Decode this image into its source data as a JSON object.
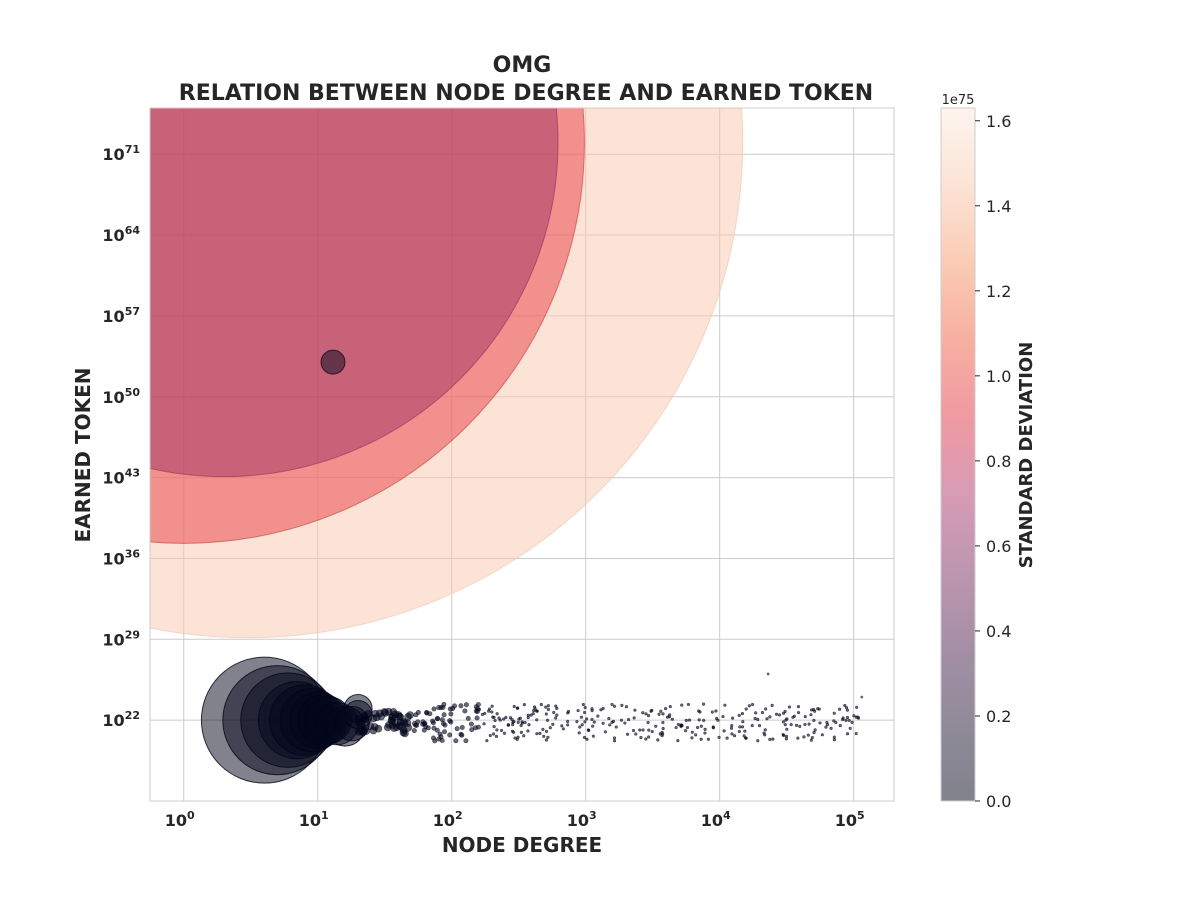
{
  "chart_data": {
    "type": "scatter",
    "title_lines": [
      "OMG",
      "RELATION BETWEEN NODE DEGREE AND EARNED TOKEN"
    ],
    "xlabel": "NODE DEGREE",
    "ylabel": "EARNED TOKEN",
    "x_scale": "log",
    "y_scale": "log",
    "xlim": [
      0.56,
      200000
    ],
    "ylim": [
      1000000000000000.0,
      1e+75
    ],
    "x_ticks": [
      {
        "value": 1,
        "base": "10",
        "exp": "0"
      },
      {
        "value": 10,
        "base": "10",
        "exp": "1"
      },
      {
        "value": 100,
        "base": "10",
        "exp": "2"
      },
      {
        "value": 1000,
        "base": "10",
        "exp": "3"
      },
      {
        "value": 10000,
        "base": "10",
        "exp": "4"
      },
      {
        "value": 100000,
        "base": "10",
        "exp": "5"
      }
    ],
    "y_ticks": [
      {
        "value": 1e+22,
        "base": "10",
        "exp": "22"
      },
      {
        "value": 1e+29,
        "base": "10",
        "exp": "29"
      },
      {
        "value": 1e+36,
        "base": "10",
        "exp": "36"
      },
      {
        "value": 1e+43,
        "base": "10",
        "exp": "43"
      },
      {
        "value": 1e+50,
        "base": "10",
        "exp": "50"
      },
      {
        "value": 1e+57,
        "base": "10",
        "exp": "57"
      },
      {
        "value": 1e+64,
        "base": "10",
        "exp": "64"
      },
      {
        "value": 1e+71,
        "base": "10",
        "exp": "71"
      }
    ],
    "grid": true,
    "point_alpha": 0.5,
    "size_encoding": "standard deviation",
    "color_encoding": "standard deviation",
    "big_points": [
      {
        "x": 1,
        "y": 1e+72,
        "std": 9.5e+74
      },
      {
        "x": 2,
        "y": 1e+72,
        "std": 6.6e+74
      },
      {
        "x": 3,
        "y": 1e+72,
        "std": 1.45e+75
      },
      {
        "x": 13,
        "y": 1e+53,
        "std": 1e+52
      }
    ],
    "clustered_points": [
      {
        "x": 4,
        "y": 1e+22,
        "std": 8e+21
      },
      {
        "x": 5,
        "y": 1e+22,
        "std": 6e+21
      },
      {
        "x": 6,
        "y": 1e+22,
        "std": 4.5e+21
      },
      {
        "x": 7,
        "y": 1e+22,
        "std": 3e+21
      },
      {
        "x": 8,
        "y": 1e+22,
        "std": 2.5e+21
      },
      {
        "x": 9,
        "y": 1e+22,
        "std": 2e+21
      },
      {
        "x": 10,
        "y": 1e+22,
        "std": 1.6e+21
      },
      {
        "x": 11,
        "y": 1e+22,
        "std": 1.3e+21
      },
      {
        "x": 12,
        "y": 1e+22,
        "std": 1.1e+21
      },
      {
        "x": 14,
        "y": 5e+21,
        "std": 9e+20
      },
      {
        "x": 16,
        "y": 3e+21,
        "std": 8e+20
      },
      {
        "x": 18,
        "y": 5e+21,
        "std": 6e+20
      },
      {
        "x": 20,
        "y": 1e+23,
        "std": 4e+20
      },
      {
        "x": 20,
        "y": 3e+22,
        "std": 4e+20
      }
    ],
    "scatter_x_range": [
      20,
      110000
    ],
    "scatter_y_range": [
      1e+19,
      1e+24
    ],
    "scatter_point_count": 420,
    "outlier_points": [
      {
        "x": 23000,
        "y": 1e+26
      },
      {
        "x": 115000,
        "y": 1e+24
      }
    ],
    "colorbar": {
      "label": "STANDARD DEVIATION",
      "offset_text": "1e75",
      "min": 0.0,
      "max": 1.63,
      "ticks": [
        "0.0",
        "0.2",
        "0.4",
        "0.6",
        "0.8",
        "1.0",
        "1.2",
        "1.4",
        "1.6"
      ],
      "colormap": [
        "#03051a",
        "#1f1633",
        "#4a1f4b",
        "#7b2d5f",
        "#b1386a",
        "#e13342",
        "#f06043",
        "#f6996b",
        "#f9c7ae",
        "#faebdd"
      ]
    },
    "colors": {
      "grid": "#cccccc",
      "axes_edge": "#cccccc",
      "background": "#ffffff"
    }
  }
}
